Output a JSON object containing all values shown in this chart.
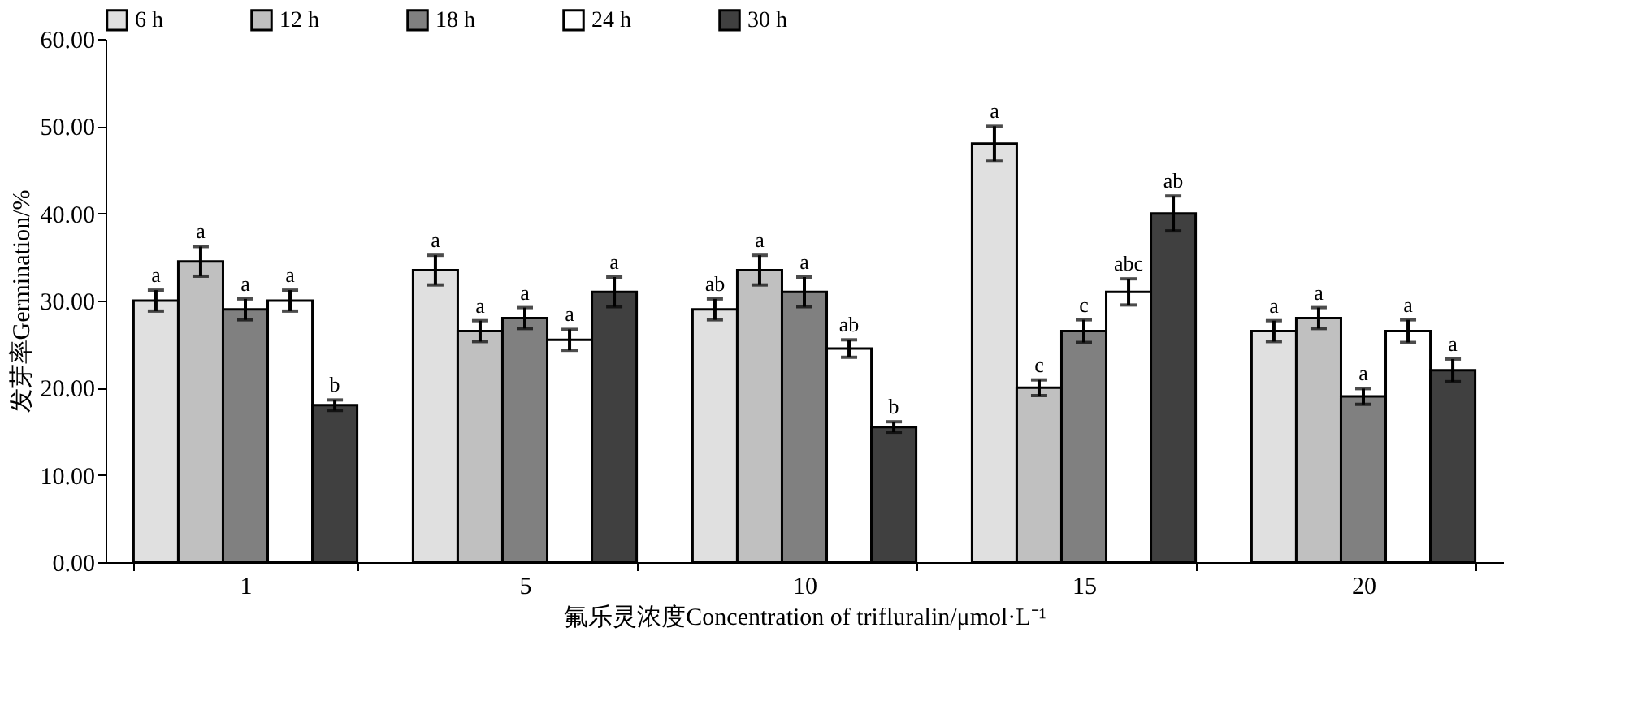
{
  "chart_data": {
    "type": "bar",
    "xlabel": "氟乐灵浓度Concentration of  trifluralin/μmol·L⁻¹",
    "ylabel": "发芽率Germination/%",
    "categories": [
      "1",
      "5",
      "10",
      "15",
      "20"
    ],
    "ylim": [
      0,
      60
    ],
    "yticks": [
      {
        "value": 0,
        "label": "0.00"
      },
      {
        "value": 10,
        "label": "10.00"
      },
      {
        "value": 20,
        "label": "20.00"
      },
      {
        "value": 30,
        "label": "30.00"
      },
      {
        "value": 40,
        "label": "40.00"
      },
      {
        "value": 50,
        "label": "50.00"
      },
      {
        "value": 60,
        "label": "60.00"
      }
    ],
    "legend": "top",
    "grid": false,
    "series": [
      {
        "name": "6 h",
        "color": "#e0e0e0",
        "values": [
          30,
          33.5,
          29,
          48,
          26.5
        ],
        "errors": [
          1.2,
          1.7,
          1.2,
          2,
          1.2
        ],
        "value_labels": [
          "a",
          "a",
          "ab",
          "a",
          "a"
        ]
      },
      {
        "name": "12 h",
        "color": "#c0c0c0",
        "values": [
          34.5,
          26.5,
          33.5,
          20,
          28
        ],
        "errors": [
          1.7,
          1.2,
          1.7,
          0.9,
          1.2
        ],
        "value_labels": [
          "a",
          "a",
          "a",
          "c",
          "a"
        ]
      },
      {
        "name": "18 h",
        "color": "#808080",
        "values": [
          29,
          28,
          31,
          26.5,
          19
        ],
        "errors": [
          1.2,
          1.2,
          1.7,
          1.3,
          0.9
        ],
        "value_labels": [
          "a",
          "a",
          "a",
          "c",
          "a"
        ]
      },
      {
        "name": "24 h",
        "color": "#ffffff",
        "values": [
          30,
          25.5,
          24.5,
          31,
          26.5
        ],
        "errors": [
          1.2,
          1.2,
          1,
          1.5,
          1.3
        ],
        "value_labels": [
          "a",
          "a",
          "ab",
          "abc",
          "a"
        ]
      },
      {
        "name": "30 h",
        "color": "#404040",
        "values": [
          18,
          31,
          15.5,
          40,
          22
        ],
        "errors": [
          0.6,
          1.7,
          0.6,
          2,
          1.3
        ],
        "value_labels": [
          "b",
          "a",
          "b",
          "ab",
          "a"
        ]
      }
    ]
  }
}
